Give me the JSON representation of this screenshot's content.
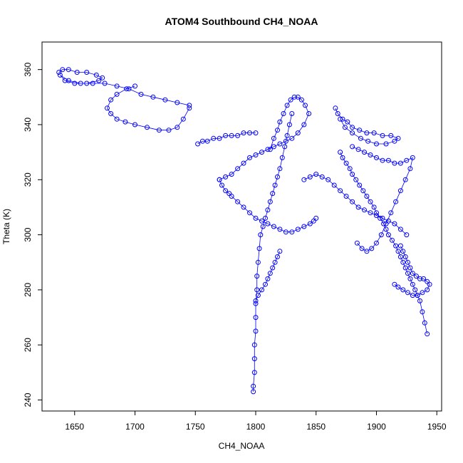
{
  "chart_data": {
    "type": "scatter",
    "title": "ATOM4 Southbound CH4_NOAA",
    "xlabel": "CH4_NOAA",
    "ylabel": "Theta (K)",
    "xlim": [
      1623,
      1954
    ],
    "ylim": [
      236,
      370
    ],
    "x_ticks": [
      1650,
      1700,
      1750,
      1800,
      1850,
      1900,
      1950
    ],
    "y_ticks": [
      240,
      260,
      280,
      300,
      320,
      340,
      360
    ],
    "x_tick_labels": [
      "1650",
      "1700",
      "1750",
      "1800",
      "1850",
      "1900",
      "1950"
    ],
    "y_tick_labels": [
      "240",
      "260",
      "280",
      "300",
      "320",
      "340",
      "360"
    ],
    "grid": false,
    "legend": "none",
    "marker": "open-circle",
    "color": "#0000ff",
    "series": [
      {
        "x": [
          1637,
          1640,
          1645,
          1652,
          1660,
          1668,
          1673,
          1670,
          1660,
          1650,
          1642,
          1638,
          1645,
          1655,
          1665,
          1675,
          1685,
          1695,
          1705,
          1715,
          1725,
          1735,
          1745
        ],
        "y": [
          359,
          360,
          360,
          359,
          359,
          358,
          357,
          356,
          355,
          355,
          356,
          358,
          356,
          355,
          355,
          355,
          354,
          353,
          351,
          350,
          349,
          348,
          347
        ]
      },
      {
        "x": [
          1745,
          1740,
          1735,
          1728,
          1720,
          1710,
          1700,
          1692,
          1685,
          1680,
          1677,
          1680,
          1685,
          1693,
          1700
        ],
        "y": [
          346,
          342,
          339,
          338,
          338,
          339,
          340,
          341,
          342,
          344,
          346,
          349,
          351,
          353,
          354
        ]
      },
      {
        "x": [
          1798,
          1798,
          1799,
          1799,
          1799,
          1800,
          1800,
          1800,
          1801,
          1801,
          1802,
          1803,
          1804,
          1806,
          1808,
          1810,
          1812,
          1814,
          1816,
          1818,
          1820,
          1822,
          1824,
          1826,
          1828,
          1830
        ],
        "y": [
          243,
          245,
          250,
          255,
          260,
          265,
          270,
          275,
          280,
          285,
          290,
          295,
          300,
          303,
          306,
          309,
          312,
          315,
          318,
          321,
          324,
          328,
          332,
          336,
          340,
          344
        ]
      },
      {
        "x": [
          1812,
          1815,
          1818,
          1820,
          1823,
          1826,
          1829,
          1832,
          1835,
          1838,
          1841,
          1844,
          1840,
          1835,
          1830,
          1825,
          1820,
          1815,
          1810,
          1805,
          1800,
          1795,
          1790,
          1785,
          1780,
          1775,
          1770
        ],
        "y": [
          331,
          335,
          338,
          341,
          344,
          347,
          349,
          350,
          350,
          349,
          347,
          344,
          340,
          337,
          335,
          334,
          333,
          332,
          331,
          330,
          329,
          328,
          326,
          324,
          322,
          321,
          320
        ]
      },
      {
        "x": [
          1770,
          1772,
          1775,
          1778,
          1780,
          1785,
          1790,
          1795,
          1800,
          1805,
          1810,
          1815,
          1820,
          1825,
          1830,
          1835,
          1840,
          1845,
          1848,
          1850
        ],
        "y": [
          320,
          318,
          316,
          315,
          314,
          312,
          310,
          308,
          306,
          305,
          304,
          303,
          302,
          301,
          301,
          302,
          303,
          304,
          305,
          306
        ]
      },
      {
        "x": [
          1866,
          1868,
          1872,
          1876,
          1880,
          1886,
          1892,
          1898,
          1905,
          1912,
          1918,
          1915,
          1908,
          1900,
          1893,
          1887,
          1880,
          1874,
          1870
        ],
        "y": [
          346,
          344,
          342,
          341,
          339,
          338,
          337,
          337,
          336,
          336,
          335,
          334,
          333,
          333,
          334,
          335,
          337,
          339,
          342
        ]
      },
      {
        "x": [
          1870,
          1872,
          1875,
          1878,
          1880,
          1883,
          1886,
          1889,
          1892,
          1895,
          1898,
          1900,
          1903,
          1906,
          1908,
          1910,
          1913,
          1916,
          1918,
          1920,
          1922,
          1924,
          1926,
          1928,
          1930,
          1932,
          1934,
          1936,
          1938,
          1940,
          1942
        ],
        "y": [
          330,
          328,
          326,
          324,
          322,
          320,
          318,
          316,
          314,
          312,
          310,
          308,
          306,
          304,
          302,
          300,
          298,
          296,
          294,
          292,
          290,
          288,
          286,
          284,
          282,
          280,
          278,
          276,
          272,
          268,
          264
        ]
      },
      {
        "x": [
          1880,
          1885,
          1890,
          1895,
          1900,
          1905,
          1910,
          1915,
          1920,
          1925,
          1930,
          1928,
          1924,
          1920,
          1916,
          1912,
          1908,
          1904,
          1900,
          1896,
          1892,
          1888,
          1884
        ],
        "y": [
          332,
          331,
          330,
          329,
          328,
          327,
          327,
          326,
          326,
          327,
          328,
          324,
          320,
          316,
          312,
          308,
          304,
          300,
          297,
          295,
          294,
          295,
          297
        ]
      },
      {
        "x": [
          1840,
          1845,
          1850,
          1855,
          1860,
          1865,
          1870,
          1875,
          1880,
          1885,
          1890,
          1895,
          1900,
          1905,
          1910,
          1915,
          1920,
          1925
        ],
        "y": [
          320,
          321,
          322,
          321,
          320,
          318,
          316,
          314,
          312,
          310,
          309,
          308,
          307,
          306,
          305,
          304,
          302,
          300
        ]
      },
      {
        "x": [
          1920,
          1922,
          1924,
          1926,
          1928,
          1930,
          1933,
          1936,
          1939,
          1942,
          1944,
          1942,
          1938,
          1934,
          1930,
          1926,
          1922,
          1918,
          1915
        ],
        "y": [
          296,
          294,
          292,
          290,
          288,
          286,
          285,
          284,
          284,
          283,
          282,
          280,
          279,
          278,
          278,
          279,
          280,
          281,
          282
        ]
      },
      {
        "x": [
          1800,
          1802,
          1805,
          1808,
          1810,
          1812,
          1814,
          1816,
          1818,
          1820
        ],
        "y": [
          276,
          278,
          280,
          282,
          284,
          286,
          288,
          290,
          292,
          294
        ]
      },
      {
        "x": [
          1752,
          1756,
          1760,
          1765,
          1770,
          1775,
          1780,
          1785,
          1790,
          1795,
          1800
        ],
        "y": [
          333,
          334,
          334,
          335,
          335,
          336,
          336,
          336,
          337,
          337,
          337
        ]
      }
    ]
  }
}
